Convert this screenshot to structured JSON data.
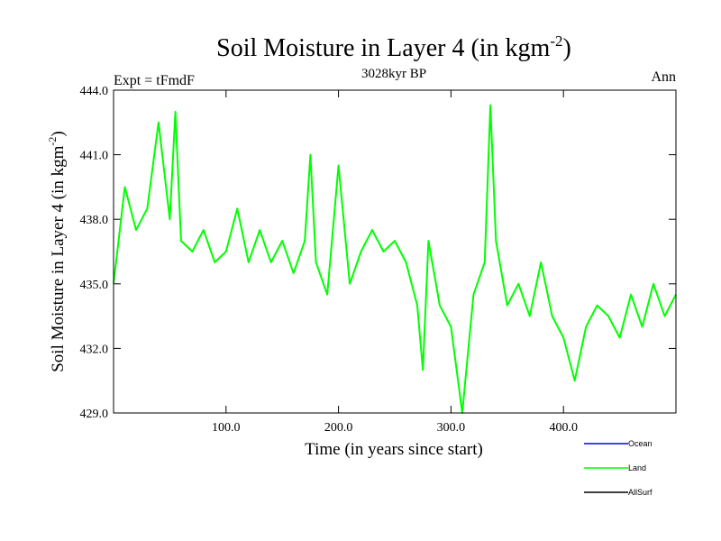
{
  "chart_data": {
    "type": "line",
    "title": "Soil Moisture in Layer 4 (in kgm",
    "title_superscript": "-2",
    "title_suffix": ")",
    "subtitle": "3028kyr BP",
    "left_label": "Expt = tFmdF",
    "right_label": "Ann",
    "xlabel": "Time (in years since start)",
    "ylabel": "Soil Moisture in Layer 4 (in kgm",
    "ylabel_superscript": "-2",
    "ylabel_suffix": ")",
    "xlim": [
      0,
      500
    ],
    "ylim": [
      429.0,
      444.0
    ],
    "xticks": [
      100,
      200,
      300,
      400
    ],
    "xtick_labels": [
      "100.0",
      "200.0",
      "300.0",
      "400.0"
    ],
    "yticks": [
      429,
      432,
      435,
      438,
      441,
      444
    ],
    "ytick_labels": [
      "429.0",
      "432.0",
      "435.0",
      "438.0",
      "441.0",
      "444.0"
    ],
    "legend": [
      {
        "name": "Ocean",
        "color": "#0000ff"
      },
      {
        "name": "Land",
        "color": "#00ff00"
      },
      {
        "name": "AllSurf",
        "color": "#000000"
      }
    ],
    "series": [
      {
        "name": "Land",
        "color": "#00ff00",
        "x": [
          0,
          10,
          20,
          30,
          40,
          50,
          55,
          60,
          70,
          80,
          90,
          100,
          110,
          120,
          130,
          140,
          150,
          160,
          170,
          175,
          180,
          190,
          200,
          210,
          220,
          230,
          240,
          250,
          260,
          270,
          275,
          280,
          290,
          300,
          310,
          320,
          330,
          335,
          340,
          350,
          360,
          370,
          380,
          390,
          400,
          410,
          420,
          430,
          440,
          450,
          460,
          470,
          480,
          490,
          500
        ],
        "values": [
          435.0,
          439.5,
          437.5,
          438.5,
          442.5,
          438.0,
          443.0,
          437.0,
          436.5,
          437.5,
          436.0,
          436.5,
          438.5,
          436.0,
          437.5,
          436.0,
          437.0,
          435.5,
          437.0,
          441.0,
          436.0,
          434.5,
          440.5,
          435.0,
          436.5,
          437.5,
          436.5,
          437.0,
          436.0,
          434.0,
          431.0,
          437.0,
          434.0,
          433.0,
          429.0,
          434.5,
          436.0,
          443.3,
          437.0,
          434.0,
          435.0,
          433.5,
          436.0,
          433.5,
          432.5,
          430.5,
          433.0,
          434.0,
          433.5,
          432.5,
          434.5,
          433.0,
          435.0,
          433.5,
          434.5
        ]
      }
    ]
  }
}
